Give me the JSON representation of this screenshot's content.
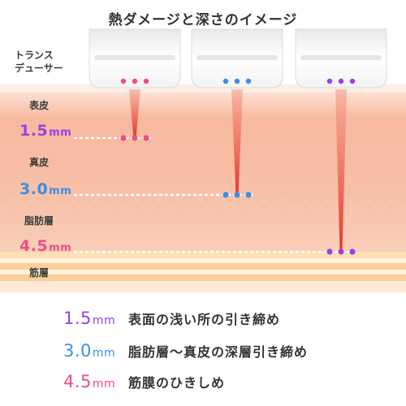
{
  "title": "熱ダメージと深さのイメージ",
  "transducer_label": [
    "トランス",
    "デューサー"
  ],
  "layers": [
    {
      "name": "表皮"
    },
    {
      "name": "真皮"
    },
    {
      "name": "脂肪層"
    },
    {
      "name": "筋層"
    }
  ],
  "unit": "mm",
  "depths": [
    {
      "value": "1.5",
      "color": "#9b3fe8"
    },
    {
      "value": "3.0",
      "color": "#3a8ee6"
    },
    {
      "value": "4.5",
      "color": "#ef4c87"
    }
  ],
  "legend": [
    {
      "value": "1.5",
      "unit": "mm",
      "desc": "表面の浅い所の引き締め",
      "color": "#9b3fe8"
    },
    {
      "value": "3.0",
      "unit": "mm",
      "desc": "脂肪層〜真皮の深層引き締め",
      "color": "#3a8ee6"
    },
    {
      "value": "4.5",
      "unit": "mm",
      "desc": "筋膜のひきしめ",
      "color": "#ef4c87"
    }
  ],
  "colors": {
    "skin_top": "#fbe3d6",
    "skin_mid": "#f9c7b3",
    "muscle_band": "#f6c98f",
    "beam": "#ee4a3e",
    "dotted_line": "#ffffff"
  }
}
